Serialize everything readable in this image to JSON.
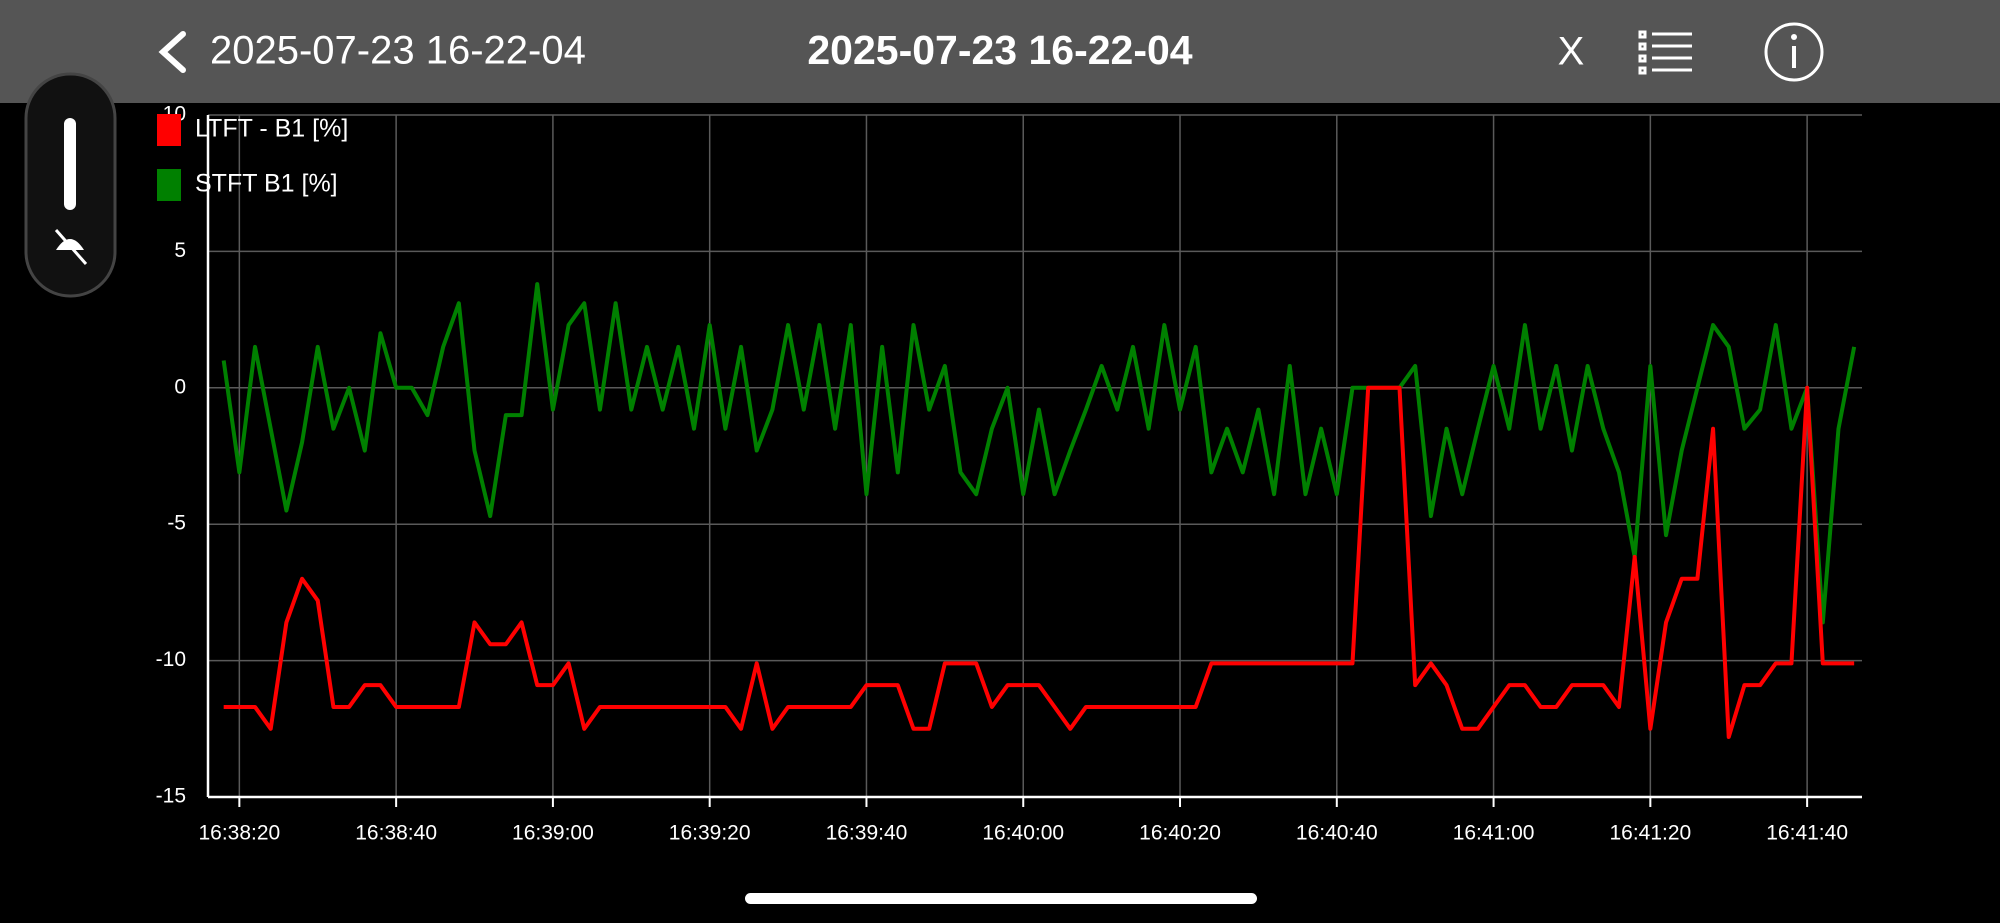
{
  "header": {
    "back_title": "2025-07-23 16-22-04",
    "center_title": "2025-07-23 16-22-04",
    "close": "X"
  },
  "chart_data": {
    "type": "line",
    "grid": true,
    "legend": "top-left",
    "x": [
      "16:38:18",
      "16:38:20",
      "16:38:22",
      "16:38:24",
      "16:38:26",
      "16:38:28",
      "16:38:30",
      "16:38:32",
      "16:38:34",
      "16:38:36",
      "16:38:38",
      "16:38:40",
      "16:38:42",
      "16:38:44",
      "16:38:46",
      "16:38:48",
      "16:38:50",
      "16:38:52",
      "16:38:54",
      "16:38:56",
      "16:38:58",
      "16:39:00",
      "16:39:02",
      "16:39:04",
      "16:39:06",
      "16:39:08",
      "16:39:10",
      "16:39:12",
      "16:39:14",
      "16:39:16",
      "16:39:18",
      "16:39:20",
      "16:39:22",
      "16:39:24",
      "16:39:26",
      "16:39:28",
      "16:39:30",
      "16:39:32",
      "16:39:34",
      "16:39:36",
      "16:39:38",
      "16:39:40",
      "16:39:42",
      "16:39:44",
      "16:39:46",
      "16:39:48",
      "16:39:50",
      "16:39:52",
      "16:39:54",
      "16:39:56",
      "16:39:58",
      "16:40:00",
      "16:40:02",
      "16:40:04",
      "16:40:06",
      "16:40:08",
      "16:40:10",
      "16:40:12",
      "16:40:14",
      "16:40:16",
      "16:40:18",
      "16:40:20",
      "16:40:22",
      "16:40:24",
      "16:40:26",
      "16:40:28",
      "16:40:30",
      "16:40:32",
      "16:40:34",
      "16:40:36",
      "16:40:38",
      "16:40:40",
      "16:40:42",
      "16:40:44",
      "16:40:46",
      "16:40:48",
      "16:40:50",
      "16:40:52",
      "16:40:54",
      "16:40:56",
      "16:40:58",
      "16:41:00",
      "16:41:02",
      "16:41:04",
      "16:41:06",
      "16:41:08",
      "16:41:10",
      "16:41:12",
      "16:41:14",
      "16:41:16",
      "16:41:18",
      "16:41:20",
      "16:41:22",
      "16:41:24",
      "16:41:26",
      "16:41:28",
      "16:41:30",
      "16:41:32",
      "16:41:34",
      "16:41:36",
      "16:41:38",
      "16:41:40",
      "16:41:42",
      "16:41:44",
      "16:41:46"
    ],
    "series": [
      {
        "name": "LTFT - B1 [%]",
        "color": "#ff0000",
        "values": [
          -11.7,
          -11.7,
          -11.7,
          -12.5,
          -8.6,
          -7,
          -7.8,
          -11.7,
          -11.7,
          -10.9,
          -10.9,
          -11.7,
          -11.7,
          -11.7,
          -11.7,
          -11.7,
          -8.6,
          -9.4,
          -9.4,
          -8.6,
          -10.9,
          -10.9,
          -10.1,
          -12.5,
          -11.7,
          -11.7,
          -11.7,
          -11.7,
          -11.7,
          -11.7,
          -11.7,
          -11.7,
          -11.7,
          -12.5,
          -10.1,
          -12.5,
          -11.7,
          -11.7,
          -11.7,
          -11.7,
          -11.7,
          -10.9,
          -10.9,
          -10.9,
          -12.5,
          -12.5,
          -10.1,
          -10.1,
          -10.1,
          -11.7,
          -10.9,
          -10.9,
          -10.9,
          -11.7,
          -12.5,
          -11.7,
          -11.7,
          -11.7,
          -11.7,
          -11.7,
          -11.7,
          -11.7,
          -11.7,
          -10.1,
          -10.1,
          -10.1,
          -10.1,
          -10.1,
          -10.1,
          -10.1,
          -10.1,
          -10.1,
          -10.1,
          0,
          0,
          0,
          -10.9,
          -10.1,
          -10.9,
          -12.5,
          -12.5,
          -11.7,
          -10.9,
          -10.9,
          -11.7,
          -11.7,
          -10.9,
          -10.9,
          -10.9,
          -11.7,
          -6.2,
          -12.5,
          -8.6,
          -7,
          -7,
          -1.5,
          -12.8,
          -10.9,
          -10.9,
          -10.1,
          -10.1,
          0,
          -10.1,
          -10.1,
          -10.1
        ]
      },
      {
        "name": "STFT B1 [%]",
        "color": "#008000",
        "values": [
          1,
          -3.1,
          1.5,
          -1.5,
          -4.5,
          -2,
          1.5,
          -1.5,
          0,
          -2.3,
          2,
          0,
          0,
          -1,
          1.5,
          3.1,
          -2.3,
          -4.7,
          -1,
          -1,
          3.8,
          -0.8,
          2.3,
          3.1,
          -0.8,
          3.1,
          -0.8,
          1.5,
          -0.8,
          1.5,
          -1.5,
          2.3,
          -1.5,
          1.5,
          -2.3,
          -0.8,
          2.3,
          -0.8,
          2.3,
          -1.5,
          2.3,
          -3.9,
          1.5,
          -3.1,
          2.3,
          -0.8,
          0.8,
          -3.1,
          -3.9,
          -1.5,
          0,
          -3.9,
          -0.8,
          -3.9,
          -2.3,
          -0.8,
          0.8,
          -0.8,
          1.5,
          -1.5,
          2.3,
          -0.8,
          1.5,
          -3.1,
          -1.5,
          -3.1,
          -0.8,
          -3.9,
          0.8,
          -3.9,
          -1.5,
          -3.9,
          0,
          0,
          0,
          0,
          0.8,
          -4.7,
          -1.5,
          -3.9,
          -1.5,
          0.8,
          -1.5,
          2.3,
          -1.5,
          0.8,
          -2.3,
          0.8,
          -1.5,
          -3.1,
          -6.2,
          0.8,
          -5.4,
          -2.3,
          0,
          2.3,
          1.5,
          -1.5,
          -0.8,
          2.3,
          -1.5,
          0,
          -8.6,
          -1.5,
          1.5
        ]
      }
    ],
    "xlim": [
      "16:38:16",
      "16:41:47"
    ],
    "xticks": [
      "16:38:20",
      "16:38:40",
      "16:39:00",
      "16:39:20",
      "16:39:40",
      "16:40:00",
      "16:40:20",
      "16:40:40",
      "16:41:00",
      "16:41:20",
      "16:41:40"
    ],
    "ylim": [
      -15,
      10
    ],
    "yticks": [
      -15,
      -10,
      -5,
      0,
      5,
      10
    ]
  }
}
